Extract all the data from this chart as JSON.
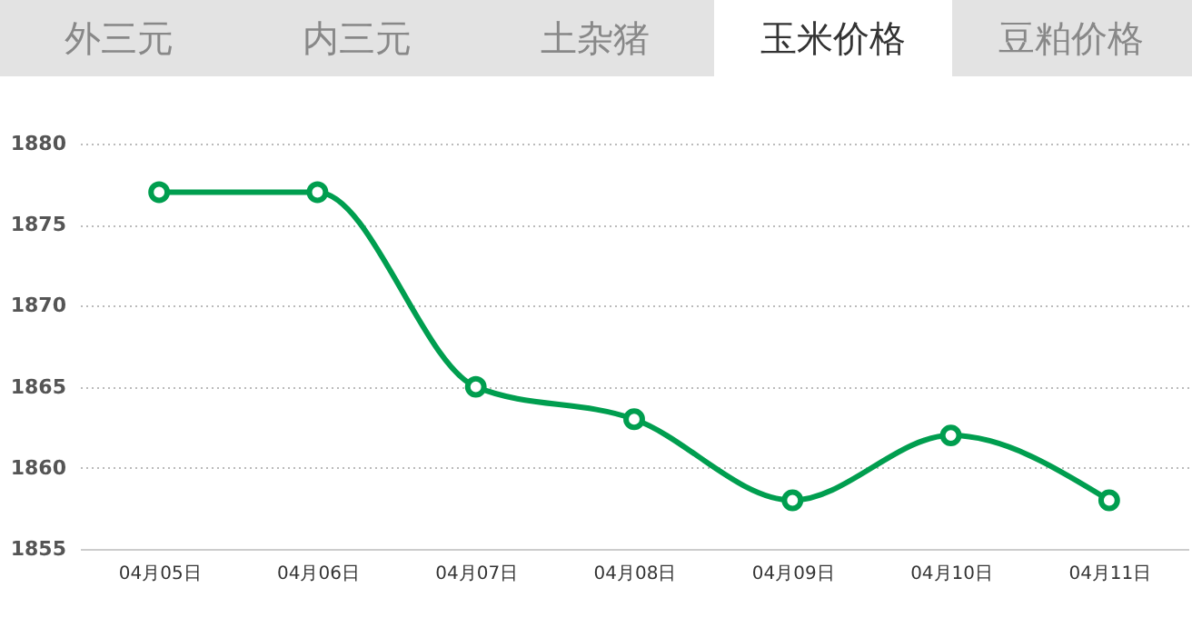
{
  "chart_data": {
    "type": "line",
    "categories": [
      "04月05日",
      "04月06日",
      "04月07日",
      "04月08日",
      "04月09日",
      "04月10日",
      "04月11日"
    ],
    "series": [
      {
        "color": "#009e4f",
        "values": [
          1877,
          1877,
          1865,
          1863,
          1858,
          1862,
          1858
        ]
      }
    ],
    "ylim": [
      1855,
      1880
    ],
    "yticks": [
      1855,
      1860,
      1865,
      1870,
      1875,
      1880
    ],
    "grid": "y",
    "marker": "circle",
    "line_style": "solid",
    "annotations": [
      "外三元",
      "内三元",
      "土杂猪",
      "玉米价格",
      "豆粕价格"
    ]
  }
}
